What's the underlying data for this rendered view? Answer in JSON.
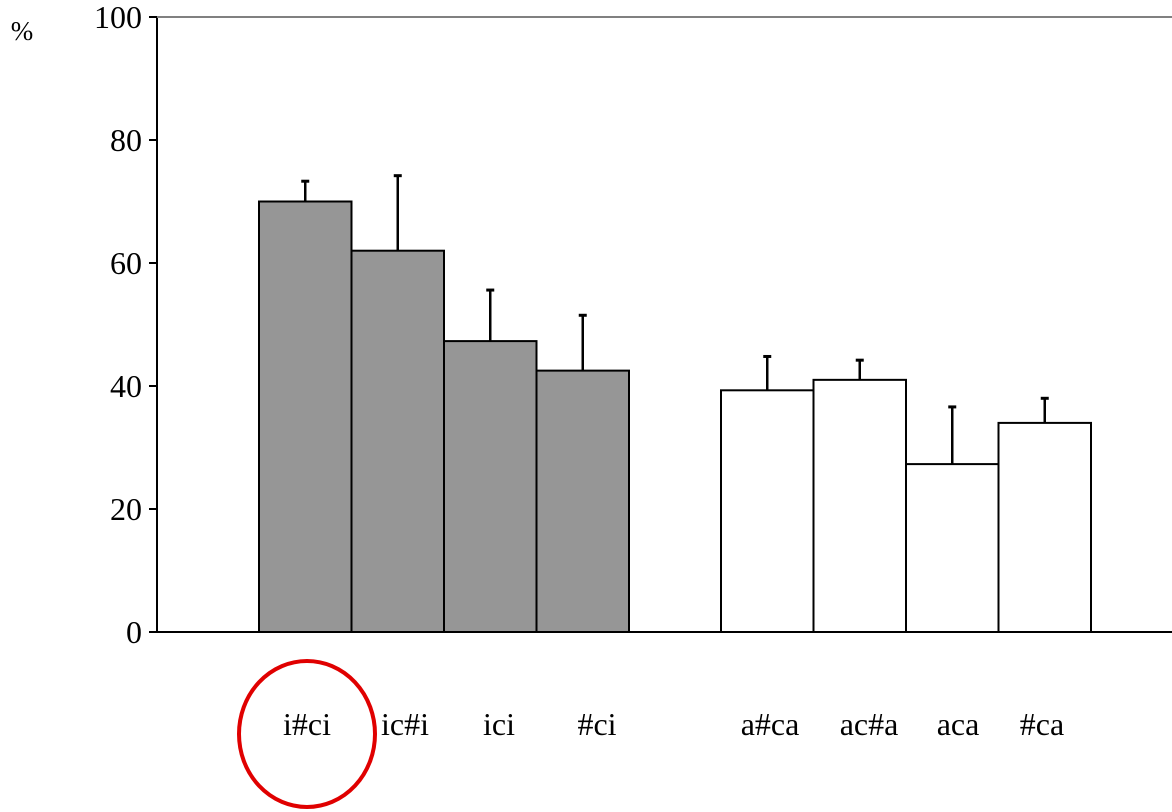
{
  "chart_data": {
    "type": "bar",
    "ylabel": "%",
    "ylim": [
      0,
      100
    ],
    "yticks": [
      0,
      20,
      40,
      60,
      80,
      100
    ],
    "grid": false,
    "categories": [
      "i#ci",
      "ic#i",
      "ici",
      "#ci",
      "a#ca",
      "ac#a",
      "aca",
      "#ca"
    ],
    "values": [
      70,
      62,
      47.3,
      42.5,
      39.3,
      41,
      27.3,
      34
    ],
    "error_upper": [
      3.3,
      12.2,
      8.3,
      9,
      5.5,
      3.2,
      9.3,
      4
    ],
    "groups": [
      {
        "categories": [
          "i#ci",
          "ic#i",
          "ici",
          "#ci"
        ],
        "fill": "#969696"
      },
      {
        "categories": [
          "a#ca",
          "ac#a",
          "aca",
          "#ca"
        ],
        "fill": "#ffffff"
      }
    ],
    "highlighted_category": "i#ci",
    "highlight_color": "#e00000",
    "bar_stroke": "#000000"
  }
}
